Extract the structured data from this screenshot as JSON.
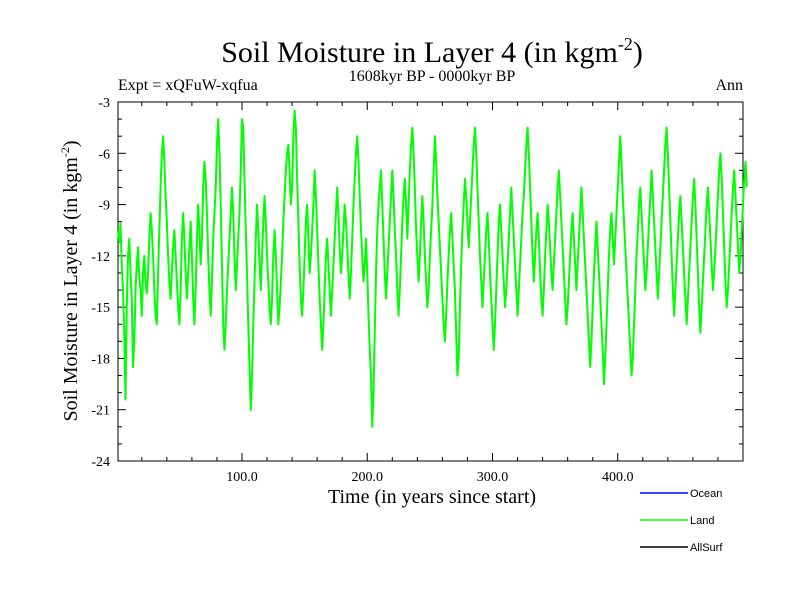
{
  "chart_data": {
    "type": "line",
    "title": "Soil Moisture in Layer 4 (in kgm",
    "title_sup": "-2",
    "title_close": ")",
    "subtitle_left": "Expt = xQFuW-xqfua",
    "subtitle_center": "1608kyr BP - 0000kyr BP",
    "subtitle_right": "Ann",
    "xlabel": "Time (in years since start)",
    "ylabel": "Soil Moisture in Layer 4 (in kgm",
    "ylabel_sup": "-2",
    "ylabel_close": ")",
    "xlim": [
      1,
      500
    ],
    "ylim": [
      -24,
      -3
    ],
    "xticks": [
      100,
      200,
      300,
      400
    ],
    "xtick_labels": [
      "100.0",
      "200.0",
      "300.0",
      "400.0"
    ],
    "yticks": [
      -3,
      -6,
      -9,
      -12,
      -15,
      -18,
      -21,
      -24
    ],
    "ytick_labels": [
      "-3",
      "-6",
      "-9",
      "-12",
      "-15",
      "-18",
      "-21",
      "-24"
    ],
    "legend_position": "bottom-right",
    "series": [
      {
        "name": "Ocean",
        "color": "#0000ff",
        "values": []
      },
      {
        "name": "AllSurf",
        "color": "#000000",
        "values": []
      },
      {
        "name": "Land",
        "color": "#00ff00",
        "x_start": 1,
        "x_step": 1,
        "values": [
          -10.5,
          -11.2,
          -10.1,
          -12.5,
          -14.0,
          -16.5,
          -20.4,
          -15.0,
          -12.0,
          -11.0,
          -13.0,
          -14.5,
          -18.5,
          -17.0,
          -14.0,
          -12.5,
          -11.5,
          -13.2,
          -14.0,
          -15.5,
          -13.0,
          -12.0,
          -13.5,
          -14.2,
          -13.0,
          -11.0,
          -9.5,
          -10.5,
          -12.0,
          -14.0,
          -15.5,
          -16.0,
          -13.0,
          -10.5,
          -8.0,
          -6.0,
          -5.0,
          -6.5,
          -8.5,
          -10.0,
          -12.0,
          -13.5,
          -14.5,
          -13.0,
          -11.5,
          -10.5,
          -12.0,
          -13.5,
          -15.0,
          -16.0,
          -14.0,
          -11.0,
          -9.5,
          -11.0,
          -13.0,
          -14.5,
          -13.0,
          -11.5,
          -10.0,
          -12.0,
          -14.5,
          -16.0,
          -14.0,
          -11.0,
          -9.0,
          -10.5,
          -12.5,
          -11.0,
          -8.0,
          -6.5,
          -7.5,
          -9.5,
          -12.0,
          -14.0,
          -15.5,
          -13.5,
          -11.0,
          -9.5,
          -8.0,
          -5.5,
          -4.0,
          -6.0,
          -9.0,
          -12.5,
          -16.0,
          -17.5,
          -16.0,
          -14.0,
          -12.5,
          -11.0,
          -9.5,
          -8.0,
          -9.5,
          -12.0,
          -14.0,
          -12.5,
          -11.0,
          -9.5,
          -7.0,
          -4.0,
          -4.5,
          -7.5,
          -10.5,
          -13.0,
          -16.0,
          -18.5,
          -21.0,
          -19.0,
          -16.0,
          -13.5,
          -11.0,
          -9.0,
          -10.5,
          -12.5,
          -14.0,
          -12.0,
          -10.0,
          -8.5,
          -10.0,
          -12.0,
          -13.5,
          -15.0,
          -16.0,
          -14.5,
          -12.0,
          -10.5,
          -12.0,
          -14.0,
          -16.0,
          -15.0,
          -13.5,
          -12.0,
          -10.0,
          -8.5,
          -7.0,
          -6.0,
          -5.5,
          -7.0,
          -9.0,
          -8.0,
          -5.0,
          -3.5,
          -4.5,
          -7.5,
          -10.0,
          -12.5,
          -14.5,
          -15.5,
          -14.0,
          -12.0,
          -10.0,
          -9.0,
          -11.0,
          -13.0,
          -12.0,
          -10.5,
          -9.0,
          -7.0,
          -8.5,
          -10.5,
          -12.5,
          -14.5,
          -16.0,
          -17.5,
          -16.0,
          -14.0,
          -12.0,
          -11.0,
          -12.5,
          -14.0,
          -15.5,
          -14.0,
          -12.5,
          -11.0,
          -9.5,
          -8.0,
          -9.5,
          -11.5,
          -13.0,
          -12.0,
          -10.5,
          -9.0,
          -10.0,
          -11.5,
          -13.0,
          -14.5,
          -13.0,
          -11.0,
          -9.0,
          -7.5,
          -6.0,
          -5.0,
          -6.5,
          -8.5,
          -10.5,
          -12.0,
          -13.5,
          -12.5,
          -11.0,
          -13.0,
          -15.5,
          -17.5,
          -19.0,
          -22.0,
          -20.0,
          -16.5,
          -13.0,
          -10.5,
          -9.0,
          -8.0,
          -7.0,
          -9.0,
          -11.0,
          -13.0,
          -14.5,
          -13.0,
          -11.5,
          -10.0,
          -8.5,
          -7.0,
          -8.5,
          -10.5,
          -12.0,
          -14.0,
          -15.5,
          -14.0,
          -12.0,
          -10.0,
          -8.5,
          -7.5,
          -9.0,
          -11.0,
          -9.0,
          -7.0,
          -5.5,
          -4.5,
          -6.0,
          -8.0,
          -10.5,
          -12.0,
          -13.5,
          -12.0,
          -10.0,
          -8.5,
          -10.0,
          -12.0,
          -13.5,
          -15.0,
          -14.0,
          -12.0,
          -10.5,
          -9.0,
          -7.0,
          -5.0,
          -6.5,
          -8.5,
          -10.0,
          -11.5,
          -13.0,
          -14.5,
          -16.0,
          -17.0,
          -15.5,
          -13.5,
          -12.0,
          -10.5,
          -9.5,
          -11.0,
          -12.5,
          -14.0,
          -16.5,
          -19.0,
          -18.0,
          -15.0,
          -12.5,
          -10.5,
          -9.0,
          -7.5,
          -8.5,
          -10.0,
          -11.5,
          -10.0,
          -8.5,
          -7.0,
          -5.5,
          -4.5,
          -6.0,
          -8.0,
          -10.0,
          -12.0,
          -13.5,
          -15.0,
          -13.5,
          -12.0,
          -10.5,
          -9.5,
          -11.0,
          -13.0,
          -14.5,
          -16.0,
          -17.5,
          -16.0,
          -14.0,
          -12.0,
          -10.0,
          -9.0,
          -10.5,
          -12.0,
          -13.5,
          -15.0,
          -14.0,
          -12.5,
          -11.0,
          -9.5,
          -8.0,
          -9.5,
          -11.0,
          -12.5,
          -14.0,
          -15.5,
          -14.0,
          -12.5,
          -11.0,
          -9.5,
          -8.5,
          -7.0,
          -5.5,
          -4.5,
          -6.0,
          -8.0,
          -10.0,
          -12.0,
          -13.5,
          -12.0,
          -10.5,
          -9.5,
          -11.0,
          -13.0,
          -14.5,
          -15.5,
          -14.0,
          -12.0,
          -10.5,
          -9.0,
          -10.0,
          -11.5,
          -13.0,
          -14.0,
          -12.5,
          -11.0,
          -9.5,
          -8.0,
          -7.0,
          -8.5,
          -10.0,
          -11.5,
          -13.0,
          -14.5,
          -16.0,
          -15.0,
          -13.5,
          -12.0,
          -10.5,
          -9.5,
          -11.0,
          -12.5,
          -14.0,
          -12.5,
          -11.0,
          -9.5,
          -8.0,
          -9.5,
          -11.0,
          -12.5,
          -14.0,
          -15.5,
          -17.0,
          -18.5,
          -17.0,
          -15.0,
          -13.0,
          -11.5,
          -10.0,
          -11.5,
          -13.0,
          -14.5,
          -16.0,
          -17.5,
          -19.5,
          -18.0,
          -16.0,
          -14.0,
          -12.0,
          -10.5,
          -9.5,
          -11.0,
          -12.5,
          -11.0,
          -9.5,
          -8.0,
          -6.5,
          -5.0,
          -6.5,
          -8.5,
          -10.0,
          -11.5,
          -13.0,
          -14.5,
          -16.0,
          -17.5,
          -19.0,
          -18.0,
          -16.0,
          -14.0,
          -12.0,
          -10.5,
          -9.0,
          -8.0,
          -9.5,
          -11.0,
          -12.5,
          -14.0,
          -13.0,
          -11.5,
          -10.0,
          -8.5,
          -7.0,
          -8.5,
          -10.0,
          -11.5,
          -13.0,
          -14.5,
          -13.0,
          -11.5,
          -10.0,
          -8.5,
          -7.0,
          -5.5,
          -4.5,
          -6.0,
          -8.0,
          -10.0,
          -12.0,
          -14.0,
          -15.5,
          -14.0,
          -12.5,
          -11.0,
          -9.5,
          -8.5,
          -10.0,
          -11.5,
          -13.0,
          -14.5,
          -16.0,
          -14.5,
          -13.0,
          -11.5,
          -10.0,
          -8.5,
          -7.5,
          -9.0,
          -11.0,
          -13.0,
          -15.0,
          -16.5,
          -15.0,
          -13.5,
          -12.0,
          -10.5,
          -9.0,
          -8.0,
          -9.5,
          -11.0,
          -12.5,
          -14.0,
          -13.0,
          -11.5,
          -10.0,
          -8.5,
          -7.0,
          -6.0,
          -7.5,
          -9.5,
          -11.5,
          -13.5,
          -15.0,
          -14.0,
          -12.5,
          -11.0,
          -9.5,
          -8.0,
          -7.0,
          -8.5,
          -10.0,
          -11.5,
          -13.0,
          -12.0,
          -10.5,
          -9.0,
          -7.5,
          -6.5,
          -8.0
        ]
      }
    ]
  }
}
